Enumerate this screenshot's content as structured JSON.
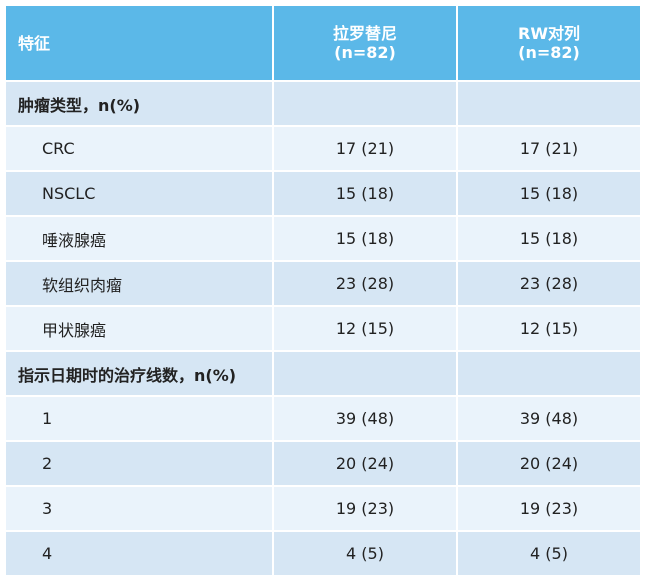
{
  "header": {
    "col1": "特征",
    "col2_line1": "拉罗替尼",
    "col2_line2": "(n=82)",
    "col3_line1": "RW对列",
    "col3_line2": "(n=82)"
  },
  "sections": [
    {
      "title": "肿瘤类型，n(%)",
      "rows": [
        {
          "label": "CRC",
          "a": "17 (21)",
          "b": "17 (21)"
        },
        {
          "label": "NSCLC",
          "a": "15 (18)",
          "b": "15 (18)"
        },
        {
          "label": "唾液腺癌",
          "a": "15 (18)",
          "b": "15 (18)"
        },
        {
          "label": "软组织肉瘤",
          "a": "23 (28)",
          "b": "23 (28)"
        },
        {
          "label": "甲状腺癌",
          "a": "12 (15)",
          "b": "12 (15)"
        }
      ]
    },
    {
      "title": "指示日期时的治疗线数，n(%)",
      "rows": [
        {
          "label": "1",
          "a": "39 (48)",
          "b": "39 (48)"
        },
        {
          "label": "2",
          "a": "20 (24)",
          "b": "20 (24)"
        },
        {
          "label": "3",
          "a": "19 (23)",
          "b": "19 (23)"
        },
        {
          "label": "4",
          "a": "4 (5)",
          "b": "4 (5)"
        }
      ]
    }
  ],
  "colors": {
    "header_bg": "#5bb8e8",
    "row_dark": "#d6e6f4",
    "row_light": "#eaf3fb"
  }
}
